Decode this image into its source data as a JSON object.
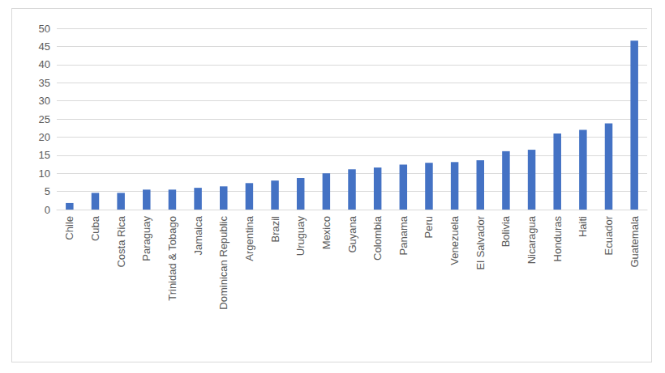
{
  "chart_data": {
    "type": "bar",
    "categories": [
      "Chile",
      "Cuba",
      "Costa Rica",
      "Paraguay",
      "Trinidad & Tobago",
      "Jamaica",
      "Dominican Republic",
      "Argentina",
      "Brazil",
      "Uruguay",
      "Mexico",
      "Guyana",
      "Colombia",
      "Panama",
      "Peru",
      "Venezuela",
      "El Salvador",
      "Bolivia",
      "Nicaragua",
      "Honduras",
      "Haiti",
      "Ecuador",
      "Guatemala"
    ],
    "values": [
      1.8,
      4.6,
      4.6,
      5.5,
      5.5,
      6.0,
      6.4,
      7.3,
      8.0,
      8.7,
      10.0,
      11.1,
      11.6,
      12.4,
      12.9,
      13.1,
      13.6,
      16.1,
      16.5,
      21.0,
      22.0,
      23.8,
      46.6
    ],
    "color": "#4472c4",
    "ylim": [
      0,
      50
    ],
    "yticks": [
      0,
      5,
      10,
      15,
      20,
      25,
      30,
      35,
      40,
      45,
      50
    ],
    "grid": true
  }
}
